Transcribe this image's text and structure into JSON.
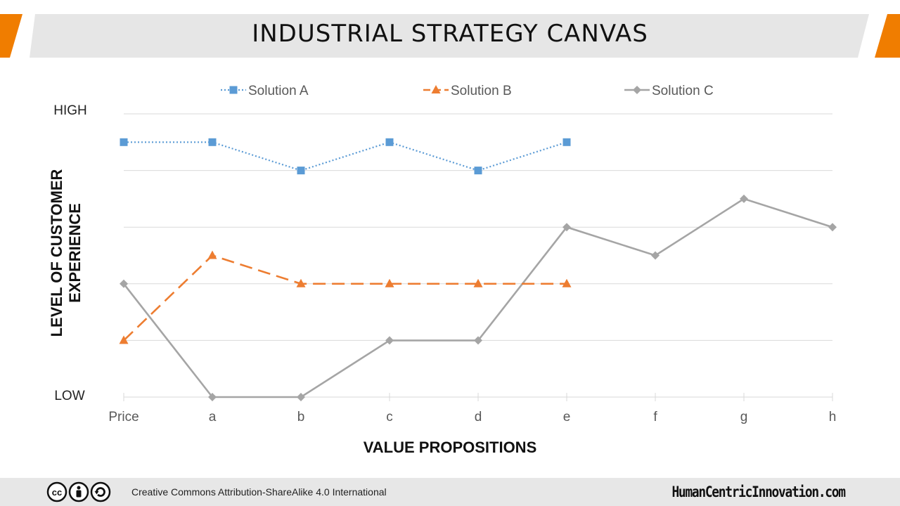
{
  "slide": {
    "title": "INDUSTRIAL STRATEGY CANVAS",
    "accent": "#f07d00",
    "band_color": "#e6e6e6"
  },
  "footer": {
    "license": "Creative Commons Attribution-ShareAlike  4.0 International",
    "site": "HumanCentricInnovation.com",
    "icons": [
      "cc-icon",
      "attribution-icon",
      "share-alike-icon"
    ]
  },
  "chart_data": {
    "type": "line",
    "title": "",
    "categories": [
      "Price",
      "a",
      "b",
      "c",
      "d",
      "e",
      "f",
      "g",
      "h"
    ],
    "xlabel": "VALUE PROPOSITIONS",
    "ylabel_lines": [
      "LEVEL OF CUSTOMER",
      "EXPERIENCE"
    ],
    "ylim": [
      0,
      5
    ],
    "y_tick_labels": {
      "high": "HIGH",
      "low": "LOW"
    },
    "grid": true,
    "legend_position": "top",
    "series": [
      {
        "name": "Solution A",
        "color": "#5b9bd5",
        "marker": "square",
        "line": "dotted",
        "values": [
          4.5,
          4.5,
          4.0,
          4.5,
          4.0,
          4.5,
          null,
          null,
          null
        ]
      },
      {
        "name": "Solution B",
        "color": "#ed7d31",
        "marker": "triangle",
        "line": "dashed",
        "values": [
          1.0,
          2.5,
          2.0,
          2.0,
          2.0,
          2.0,
          null,
          null,
          null
        ]
      },
      {
        "name": "Solution C",
        "color": "#a5a5a5",
        "marker": "diamond",
        "line": "solid",
        "values": [
          2.0,
          0.0,
          0.0,
          1.0,
          1.0,
          3.0,
          2.5,
          3.5,
          3.0
        ]
      }
    ]
  }
}
